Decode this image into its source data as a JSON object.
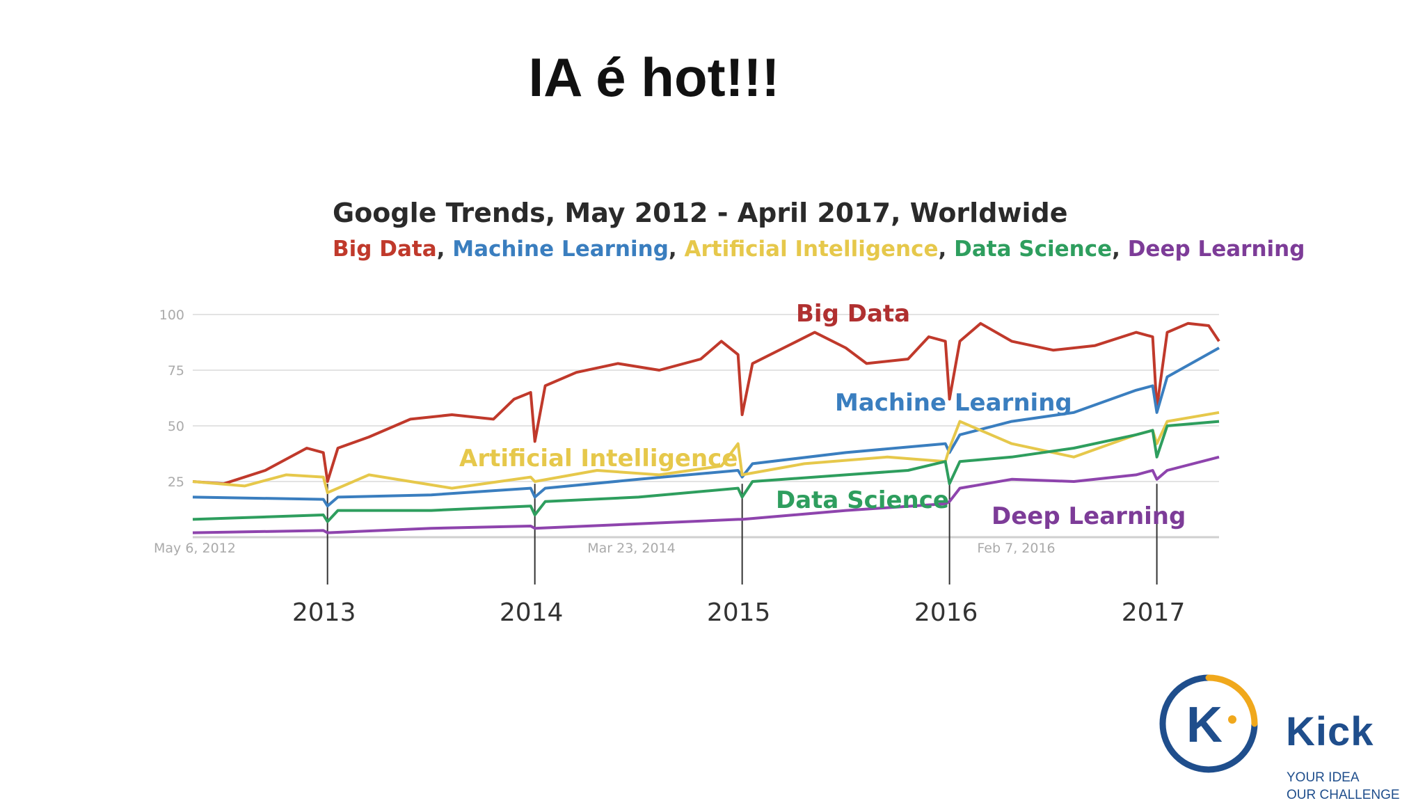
{
  "slide": {
    "title": "IA é hot!!!"
  },
  "brand": {
    "name": "Kick",
    "logo_letter": "K",
    "tagline_1": "YOUR IDEA",
    "tagline_2": "OUR CHALLENGE",
    "colors": {
      "blue": "#1f4e8c",
      "orange": "#f0a81c"
    }
  },
  "chart_data": {
    "type": "line",
    "title": "Google Trends, May 2012 -  April 2017, Worldwide",
    "legend": [
      "Big Data",
      "Machine Learning",
      "Artificial Intelligence",
      "Data Science",
      "Deep Learning"
    ],
    "legend_placement": "top (below title)",
    "ylim": [
      0,
      100
    ],
    "yticks": [
      "100",
      "75",
      "50",
      "25"
    ],
    "xlim": [
      2012.35,
      2017.3
    ],
    "xtick_labels": [
      {
        "label": "May 6, 2012",
        "x": 2012.35
      },
      {
        "label": "Mar 23, 2014",
        "x": 2014.22
      },
      {
        "label": "Feb 7, 2016",
        "x": 2016.1
      }
    ],
    "year_markers": [
      2013,
      2014,
      2015,
      2016,
      2017
    ],
    "grid": true,
    "series": [
      {
        "name": "Big Data",
        "color": "#c0392b",
        "x": [
          2012.35,
          2012.5,
          2012.7,
          2012.9,
          2012.98,
          2013.0,
          2013.05,
          2013.2,
          2013.4,
          2013.6,
          2013.8,
          2013.9,
          2013.98,
          2014.0,
          2014.05,
          2014.2,
          2014.4,
          2014.6,
          2014.8,
          2014.9,
          2014.98,
          2015.0,
          2015.05,
          2015.2,
          2015.35,
          2015.5,
          2015.6,
          2015.8,
          2015.9,
          2015.98,
          2016.0,
          2016.05,
          2016.15,
          2016.3,
          2016.5,
          2016.7,
          2016.9,
          2016.98,
          2017.0,
          2017.05,
          2017.15,
          2017.25,
          2017.3
        ],
        "values": [
          25,
          24,
          30,
          40,
          38,
          25,
          40,
          45,
          53,
          55,
          53,
          62,
          65,
          43,
          68,
          74,
          78,
          75,
          80,
          88,
          82,
          55,
          78,
          85,
          92,
          85,
          78,
          80,
          90,
          88,
          62,
          88,
          96,
          88,
          84,
          86,
          92,
          90,
          58,
          92,
          96,
          95,
          88
        ]
      },
      {
        "name": "Machine Learning",
        "color": "#3a7ebf",
        "x": [
          2012.35,
          2012.98,
          2013.0,
          2013.05,
          2013.5,
          2013.98,
          2014.0,
          2014.05,
          2014.5,
          2014.98,
          2015.0,
          2015.05,
          2015.5,
          2015.98,
          2016.0,
          2016.05,
          2016.3,
          2016.6,
          2016.9,
          2016.98,
          2017.0,
          2017.05,
          2017.3
        ],
        "values": [
          18,
          17,
          14,
          18,
          19,
          22,
          18,
          22,
          26,
          30,
          27,
          33,
          38,
          42,
          38,
          46,
          52,
          56,
          66,
          68,
          56,
          72,
          85
        ]
      },
      {
        "name": "Artificial Intelligence",
        "color": "#e6c84b",
        "x": [
          2012.35,
          2012.6,
          2012.8,
          2012.98,
          2013.0,
          2013.2,
          2013.6,
          2013.98,
          2014.0,
          2014.3,
          2014.6,
          2014.9,
          2014.98,
          2015.0,
          2015.3,
          2015.7,
          2015.98,
          2016.0,
          2016.05,
          2016.3,
          2016.6,
          2016.9,
          2016.98,
          2017.0,
          2017.05,
          2017.3
        ],
        "values": [
          25,
          23,
          28,
          27,
          20,
          28,
          22,
          27,
          25,
          30,
          28,
          32,
          42,
          28,
          33,
          36,
          34,
          40,
          52,
          42,
          36,
          46,
          48,
          42,
          52,
          56
        ]
      },
      {
        "name": "Data Science",
        "color": "#2e9e5e",
        "x": [
          2012.35,
          2012.98,
          2013.0,
          2013.05,
          2013.5,
          2013.98,
          2014.0,
          2014.05,
          2014.5,
          2014.98,
          2015.0,
          2015.05,
          2015.5,
          2015.8,
          2015.98,
          2016.0,
          2016.05,
          2016.3,
          2016.6,
          2016.9,
          2016.98,
          2017.0,
          2017.05,
          2017.3
        ],
        "values": [
          8,
          10,
          7,
          12,
          12,
          14,
          10,
          16,
          18,
          22,
          18,
          25,
          28,
          30,
          34,
          24,
          34,
          36,
          40,
          46,
          48,
          36,
          50,
          52
        ]
      },
      {
        "name": "Deep Learning",
        "color": "#8e44ad",
        "x": [
          2012.35,
          2012.98,
          2013.0,
          2013.5,
          2013.98,
          2014.0,
          2014.5,
          2014.98,
          2015.0,
          2015.5,
          2015.98,
          2016.0,
          2016.05,
          2016.3,
          2016.6,
          2016.9,
          2016.98,
          2017.0,
          2017.05,
          2017.3
        ],
        "values": [
          2,
          3,
          2,
          4,
          5,
          4,
          6,
          8,
          8,
          12,
          15,
          16,
          22,
          26,
          25,
          28,
          30,
          26,
          30,
          36
        ]
      }
    ],
    "annotations": [
      {
        "text": "Big Data",
        "color": "#b03030"
      },
      {
        "text": "Machine Learning",
        "color": "#3a7ebf"
      },
      {
        "text": "Artificial Intelligence",
        "color": "#e6c84b"
      },
      {
        "text": "Data Science",
        "color": "#2e9e5e"
      },
      {
        "text": "Deep Learning",
        "color": "#7d3c98"
      }
    ]
  }
}
